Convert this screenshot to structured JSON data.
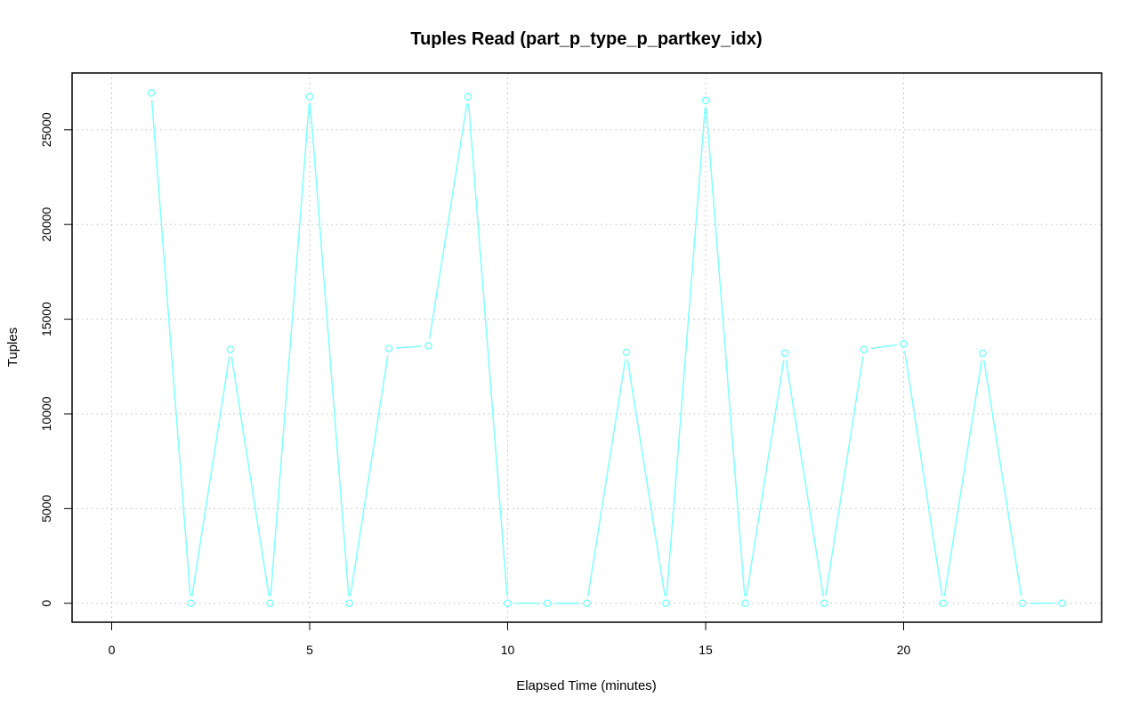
{
  "chart_data": {
    "type": "line",
    "title": "Tuples Read (part_p_type_p_partkey_idx)",
    "xlabel": "Elapsed Time (minutes)",
    "ylabel": "Tuples",
    "xlim": [
      -1,
      25
    ],
    "ylim": [
      -1000,
      28000
    ],
    "xticks": [
      0,
      5,
      10,
      15,
      20
    ],
    "yticks": [
      0,
      5000,
      10000,
      15000,
      20000,
      25000
    ],
    "grid": true,
    "series_color": "#7fffff",
    "grid_color": "#bebebe",
    "x": [
      1,
      2,
      3,
      4,
      5,
      6,
      7,
      8,
      9,
      10,
      11,
      12,
      13,
      14,
      15,
      16,
      17,
      18,
      19,
      20,
      21,
      22,
      23,
      24
    ],
    "values": [
      26950,
      0,
      13400,
      0,
      26750,
      0,
      13450,
      13600,
      26750,
      0,
      0,
      0,
      13250,
      0,
      26550,
      0,
      13200,
      0,
      13400,
      13700,
      0,
      13200,
      0,
      0
    ]
  }
}
